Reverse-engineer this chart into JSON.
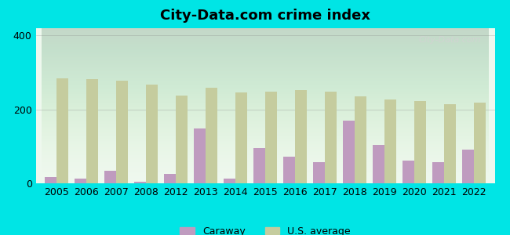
{
  "title": "City-Data.com crime index",
  "years": [
    2005,
    2006,
    2007,
    2008,
    2012,
    2013,
    2014,
    2015,
    2016,
    2017,
    2018,
    2019,
    2020,
    2021,
    2022
  ],
  "caraway": [
    18,
    12,
    35,
    5,
    25,
    148,
    12,
    95,
    72,
    58,
    170,
    105,
    62,
    58,
    92
  ],
  "us_average": [
    285,
    283,
    278,
    268,
    238,
    258,
    245,
    248,
    252,
    248,
    235,
    228,
    222,
    215,
    218
  ],
  "caraway_color": "#bf9bbf",
  "us_avg_color": "#c5cc9e",
  "background_color": "#00e5e5",
  "ylim": [
    0,
    420
  ],
  "yticks": [
    0,
    200,
    400
  ],
  "bar_width": 0.4,
  "watermark": "City-Data.com",
  "legend_caraway": "Caraway",
  "legend_us": "U.S. average"
}
